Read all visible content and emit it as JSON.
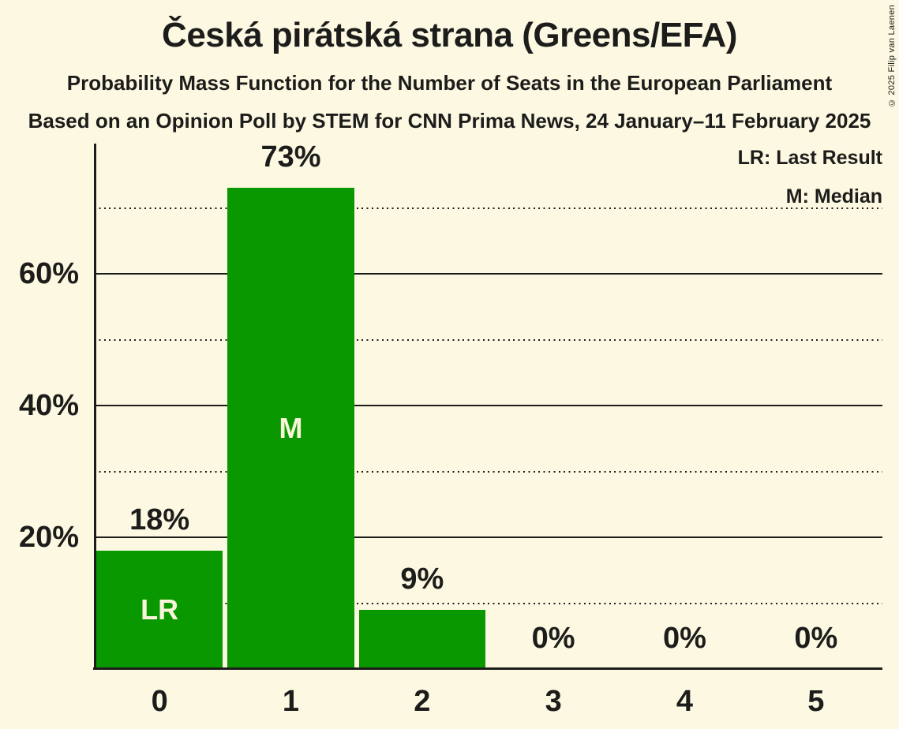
{
  "title": "Česká pirátská strana (Greens/EFA)",
  "subtitle": "Probability Mass Function for the Number of Seats in the European Parliament",
  "source_line": "Based on an Opinion Poll by STEM for CNN Prima News, 24 January–11 February 2025",
  "copyright": "© 2025 Filip van Laenen",
  "legend": {
    "lr": "LR: Last Result",
    "m": "M: Median"
  },
  "colors": {
    "background": "#fcf8e2",
    "bar": "#0a9800",
    "text": "#1c1c1a",
    "bar_label": "#f9f5da"
  },
  "chart_data": {
    "type": "bar",
    "title": "Probability Mass Function for the Number of Seats in the European Parliament",
    "categories": [
      "0",
      "1",
      "2",
      "3",
      "4",
      "5"
    ],
    "values": [
      18,
      73,
      9,
      0,
      0,
      0
    ],
    "value_labels": [
      "18%",
      "73%",
      "9%",
      "0%",
      "0%",
      "0%"
    ],
    "xlabel": "",
    "ylabel": "",
    "ylim": [
      0,
      79.7
    ],
    "yticks_solid": [
      20,
      40,
      60
    ],
    "ytick_labels": [
      "20%",
      "40%",
      "60%"
    ],
    "yticks_dotted": [
      10,
      30,
      50,
      70
    ],
    "grid": "horizontal",
    "legend_position": "top-right",
    "bar_annotations": [
      {
        "index": 0,
        "label": "LR",
        "meaning": "Last Result"
      },
      {
        "index": 1,
        "label": "M",
        "meaning": "Median"
      }
    ]
  }
}
